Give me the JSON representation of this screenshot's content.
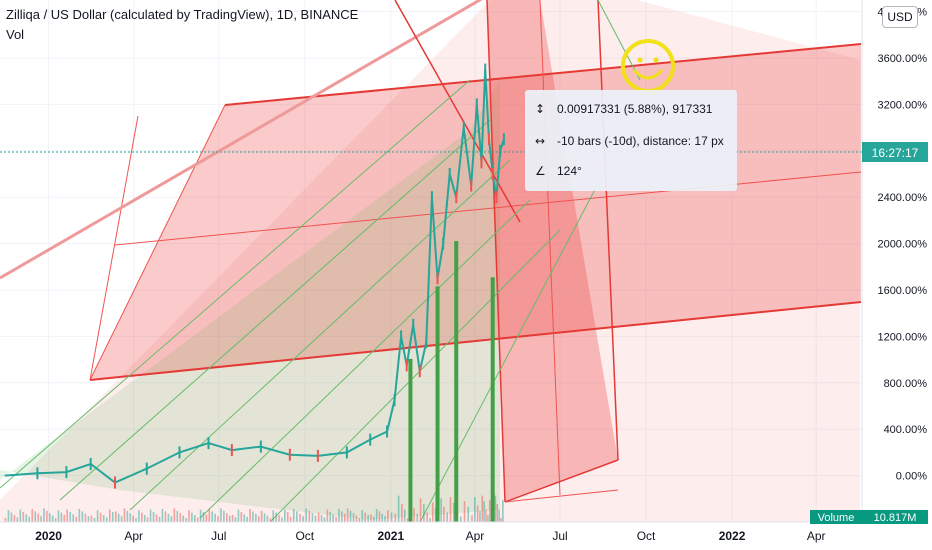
{
  "header": {
    "title": "Zilliqa / US Dollar (calculated by TradingView), 1D, BINANCE",
    "vol_label": "Vol"
  },
  "currency_label": "USD",
  "measurement": {
    "price_change": "0.00917331 (5.88%), 917331",
    "bars_distance": "-10 bars (-10d), distance: 17 px",
    "angle": "124°"
  },
  "price_tag": {
    "label": "16:27:17",
    "color": "#26a69a"
  },
  "volume_tag": {
    "label": "Volume",
    "value": "10.817M",
    "color": "#089981"
  },
  "chart_data": {
    "type": "line",
    "title": "Zilliqa / US Dollar (calculated by TradingView), 1D, BINANCE",
    "y_scale": "percent",
    "ylim": [
      -400,
      4100
    ],
    "y_ticks": [
      {
        "value": 4000,
        "label": "4000.00%"
      },
      {
        "value": 3600,
        "label": "3600.00%"
      },
      {
        "value": 3200,
        "label": "3200.00%"
      },
      {
        "value": 2800,
        "label": "2800.00%"
      },
      {
        "value": 2400,
        "label": "2400.00%"
      },
      {
        "value": 2000,
        "label": "2000.00%"
      },
      {
        "value": 1600,
        "label": "1600.00%"
      },
      {
        "value": 1200,
        "label": "1200.00%"
      },
      {
        "value": 800,
        "label": "800.00%"
      },
      {
        "value": 400,
        "label": "400.00%"
      },
      {
        "value": 0,
        "label": "0.00%"
      }
    ],
    "x_ticks": [
      {
        "date": "2020-01-01",
        "label": "2020",
        "bold": true
      },
      {
        "date": "2020-04-01",
        "label": "Apr",
        "bold": false
      },
      {
        "date": "2020-07-01",
        "label": "Jul",
        "bold": false
      },
      {
        "date": "2020-10-01",
        "label": "Oct",
        "bold": false
      },
      {
        "date": "2021-01-01",
        "label": "2021",
        "bold": true
      },
      {
        "date": "2021-04-01",
        "label": "Apr",
        "bold": false
      },
      {
        "date": "2021-07-01",
        "label": "Jul",
        "bold": false
      },
      {
        "date": "2021-10-01",
        "label": "Oct",
        "bold": false
      },
      {
        "date": "2022-01-01",
        "label": "2022",
        "bold": true
      },
      {
        "date": "2022-04-01",
        "label": "Apr",
        "bold": false
      }
    ],
    "xlim": [
      "2019-11-10",
      "2022-05-20"
    ],
    "price_series": [
      {
        "date": "2019-11-15",
        "value": 0
      },
      {
        "date": "2019-12-20",
        "value": 20
      },
      {
        "date": "2020-01-20",
        "value": 30
      },
      {
        "date": "2020-02-15",
        "value": 100
      },
      {
        "date": "2020-03-12",
        "value": -60
      },
      {
        "date": "2020-04-15",
        "value": 60
      },
      {
        "date": "2020-05-20",
        "value": 200
      },
      {
        "date": "2020-06-20",
        "value": 280
      },
      {
        "date": "2020-07-15",
        "value": 220
      },
      {
        "date": "2020-08-15",
        "value": 250
      },
      {
        "date": "2020-09-15",
        "value": 180
      },
      {
        "date": "2020-10-15",
        "value": 170
      },
      {
        "date": "2020-11-15",
        "value": 200
      },
      {
        "date": "2020-12-10",
        "value": 310
      },
      {
        "date": "2020-12-28",
        "value": 380
      },
      {
        "date": "2021-01-05",
        "value": 650
      },
      {
        "date": "2021-01-12",
        "value": 1200
      },
      {
        "date": "2021-01-18",
        "value": 950
      },
      {
        "date": "2021-01-25",
        "value": 1300
      },
      {
        "date": "2021-02-01",
        "value": 900
      },
      {
        "date": "2021-02-08",
        "value": 1150
      },
      {
        "date": "2021-02-14",
        "value": 2400
      },
      {
        "date": "2021-02-20",
        "value": 1700
      },
      {
        "date": "2021-02-26",
        "value": 2000
      },
      {
        "date": "2021-03-05",
        "value": 2600
      },
      {
        "date": "2021-03-12",
        "value": 2400
      },
      {
        "date": "2021-03-20",
        "value": 3000
      },
      {
        "date": "2021-03-28",
        "value": 2500
      },
      {
        "date": "2021-04-03",
        "value": 3200
      },
      {
        "date": "2021-04-08",
        "value": 2700
      },
      {
        "date": "2021-04-12",
        "value": 3500
      },
      {
        "date": "2021-04-16",
        "value": 2900
      },
      {
        "date": "2021-04-20",
        "value": 2600
      },
      {
        "date": "2021-04-24",
        "value": 2400
      },
      {
        "date": "2021-04-28",
        "value": 2800
      },
      {
        "date": "2021-05-02",
        "value": 2900
      }
    ],
    "volume_spikes": [
      {
        "date": "2021-01-22",
        "value": 1.8
      },
      {
        "date": "2021-02-20",
        "value": 2.6
      },
      {
        "date": "2021-03-12",
        "value": 3.1
      },
      {
        "date": "2021-04-20",
        "value": 2.7
      }
    ]
  }
}
